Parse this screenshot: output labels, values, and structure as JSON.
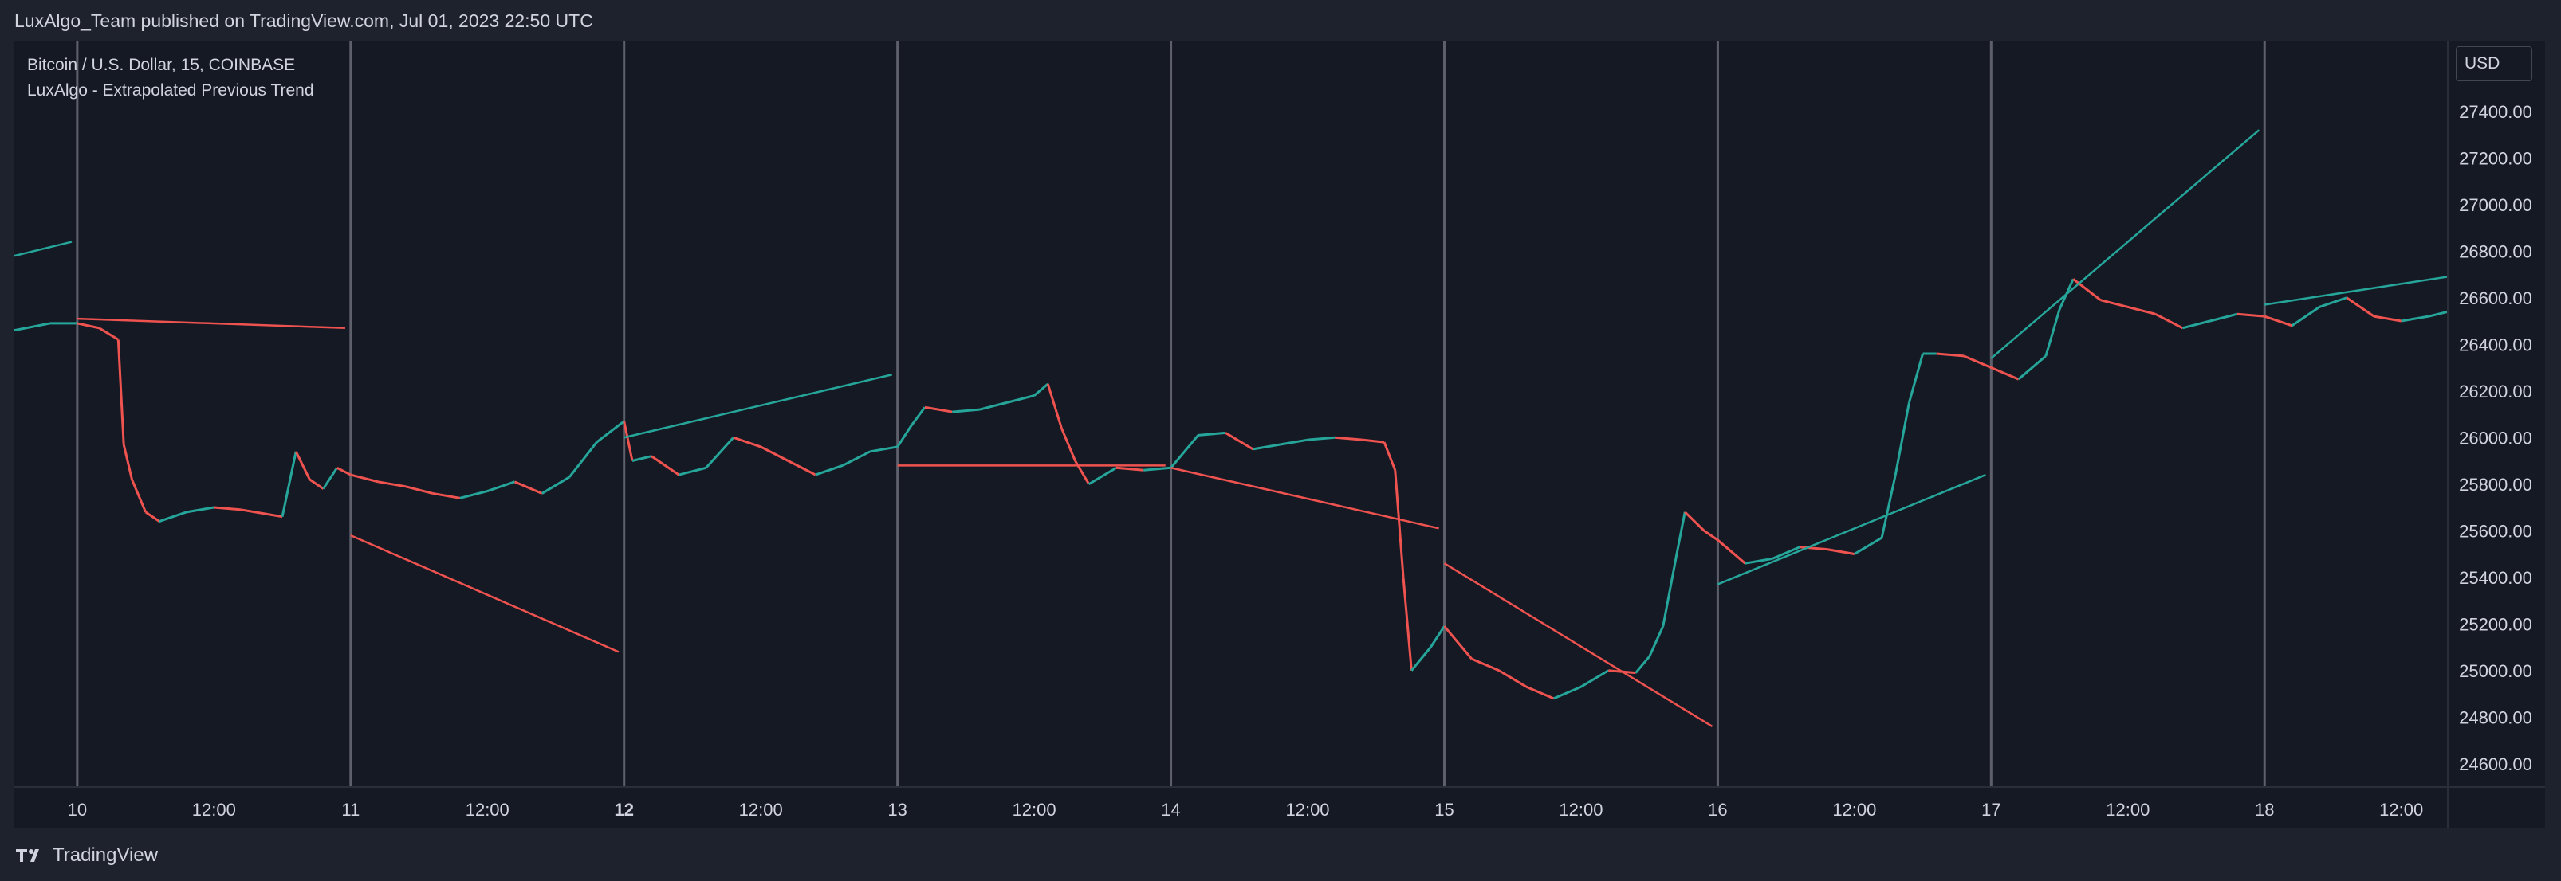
{
  "header": {
    "published_text": "LuxAlgo_Team published on TradingView.com, Jul 01, 2023 22:50 UTC"
  },
  "legend": {
    "symbol_line": "Bitcoin / U.S. Dollar, 15, COINBASE",
    "indicator_line": "LuxAlgo - Extrapolated Previous Trend"
  },
  "price_axis": {
    "currency": "USD"
  },
  "footer": {
    "brand": "TradingView"
  },
  "colors": {
    "background": "#151924",
    "up": "#26a69a",
    "down": "#ef5350",
    "text": "#d1d4dc",
    "separator": "#5d606b"
  },
  "chart_data": {
    "type": "line",
    "title": "",
    "x_ticks": [
      {
        "label": "10",
        "pos": 0,
        "bold": false
      },
      {
        "label": "12:00",
        "pos": 0.5,
        "bold": false
      },
      {
        "label": "11",
        "pos": 1,
        "bold": false
      },
      {
        "label": "12:00",
        "pos": 1.5,
        "bold": false
      },
      {
        "label": "12",
        "pos": 2,
        "bold": true
      },
      {
        "label": "12:00",
        "pos": 2.5,
        "bold": false
      },
      {
        "label": "13",
        "pos": 3,
        "bold": false
      },
      {
        "label": "12:00",
        "pos": 3.5,
        "bold": false
      },
      {
        "label": "14",
        "pos": 4,
        "bold": false
      },
      {
        "label": "12:00",
        "pos": 4.5,
        "bold": false
      },
      {
        "label": "15",
        "pos": 5,
        "bold": false
      },
      {
        "label": "12:00",
        "pos": 5.5,
        "bold": false
      },
      {
        "label": "16",
        "pos": 6,
        "bold": false
      },
      {
        "label": "12:00",
        "pos": 6.5,
        "bold": false
      },
      {
        "label": "17",
        "pos": 7,
        "bold": false
      },
      {
        "label": "12:00",
        "pos": 7.5,
        "bold": false
      },
      {
        "label": "18",
        "pos": 8,
        "bold": false
      },
      {
        "label": "12:00",
        "pos": 8.5,
        "bold": false
      }
    ],
    "y_ticks": [
      "24600.00",
      "24800.00",
      "25000.00",
      "25200.00",
      "25400.00",
      "25600.00",
      "25800.00",
      "26000.00",
      "26200.00",
      "26400.00",
      "26600.00",
      "26800.00",
      "27000.00",
      "27200.00",
      "27400.00"
    ],
    "xlim": [
      -0.23,
      8.67
    ],
    "ylim": [
      24500,
      27700
    ],
    "session_separators": [
      0,
      1,
      2,
      3,
      4,
      5,
      6,
      7,
      8
    ],
    "price_series": [
      [
        -0.23,
        26460
      ],
      [
        -0.1,
        26490
      ],
      [
        0,
        26490
      ],
      [
        0.08,
        26470
      ],
      [
        0.15,
        26420
      ],
      [
        0.17,
        25970
      ],
      [
        0.2,
        25820
      ],
      [
        0.25,
        25680
      ],
      [
        0.3,
        25640
      ],
      [
        0.4,
        25680
      ],
      [
        0.5,
        25700
      ],
      [
        0.6,
        25690
      ],
      [
        0.7,
        25670
      ],
      [
        0.75,
        25660
      ],
      [
        0.8,
        25940
      ],
      [
        0.85,
        25820
      ],
      [
        0.9,
        25780
      ],
      [
        0.95,
        25870
      ],
      [
        1,
        25840
      ],
      [
        1.1,
        25810
      ],
      [
        1.2,
        25790
      ],
      [
        1.3,
        25760
      ],
      [
        1.4,
        25740
      ],
      [
        1.5,
        25770
      ],
      [
        1.6,
        25810
      ],
      [
        1.7,
        25760
      ],
      [
        1.8,
        25830
      ],
      [
        1.9,
        25980
      ],
      [
        2,
        26070
      ],
      [
        2.03,
        25900
      ],
      [
        2.1,
        25920
      ],
      [
        2.2,
        25840
      ],
      [
        2.3,
        25870
      ],
      [
        2.4,
        26000
      ],
      [
        2.5,
        25960
      ],
      [
        2.6,
        25900
      ],
      [
        2.7,
        25840
      ],
      [
        2.8,
        25880
      ],
      [
        2.9,
        25940
      ],
      [
        3,
        25960
      ],
      [
        3.05,
        26050
      ],
      [
        3.1,
        26130
      ],
      [
        3.2,
        26110
      ],
      [
        3.3,
        26120
      ],
      [
        3.4,
        26150
      ],
      [
        3.5,
        26180
      ],
      [
        3.55,
        26230
      ],
      [
        3.6,
        26040
      ],
      [
        3.65,
        25900
      ],
      [
        3.7,
        25800
      ],
      [
        3.8,
        25870
      ],
      [
        3.9,
        25860
      ],
      [
        4,
        25870
      ],
      [
        4.1,
        26010
      ],
      [
        4.2,
        26020
      ],
      [
        4.3,
        25950
      ],
      [
        4.4,
        25970
      ],
      [
        4.5,
        25990
      ],
      [
        4.6,
        26000
      ],
      [
        4.7,
        25990
      ],
      [
        4.78,
        25980
      ],
      [
        4.82,
        25860
      ],
      [
        4.85,
        25400
      ],
      [
        4.88,
        25000
      ],
      [
        4.95,
        25100
      ],
      [
        5,
        25190
      ],
      [
        5.1,
        25050
      ],
      [
        5.2,
        25000
      ],
      [
        5.3,
        24930
      ],
      [
        5.4,
        24880
      ],
      [
        5.5,
        24930
      ],
      [
        5.6,
        25000
      ],
      [
        5.7,
        24990
      ],
      [
        5.75,
        25060
      ],
      [
        5.8,
        25190
      ],
      [
        5.85,
        25500
      ],
      [
        5.88,
        25680
      ],
      [
        5.95,
        25600
      ],
      [
        6,
        25560
      ],
      [
        6.1,
        25460
      ],
      [
        6.2,
        25480
      ],
      [
        6.3,
        25530
      ],
      [
        6.4,
        25520
      ],
      [
        6.5,
        25500
      ],
      [
        6.6,
        25570
      ],
      [
        6.65,
        25840
      ],
      [
        6.7,
        26150
      ],
      [
        6.75,
        26360
      ],
      [
        6.8,
        26360
      ],
      [
        6.9,
        26350
      ],
      [
        7,
        26300
      ],
      [
        7.1,
        26250
      ],
      [
        7.2,
        26350
      ],
      [
        7.25,
        26550
      ],
      [
        7.3,
        26680
      ],
      [
        7.4,
        26590
      ],
      [
        7.5,
        26560
      ],
      [
        7.6,
        26530
      ],
      [
        7.7,
        26470
      ],
      [
        7.8,
        26500
      ],
      [
        7.9,
        26530
      ],
      [
        8,
        26520
      ],
      [
        8.1,
        26480
      ],
      [
        8.2,
        26560
      ],
      [
        8.3,
        26600
      ],
      [
        8.4,
        26520
      ],
      [
        8.5,
        26500
      ],
      [
        8.6,
        26520
      ],
      [
        8.67,
        26540
      ]
    ],
    "trend_lines": [
      {
        "dir": "up",
        "x0": -0.23,
        "y0": 26780,
        "x1": -0.02,
        "y1": 26840
      },
      {
        "dir": "down",
        "x0": 0,
        "y0": 26510,
        "x1": 0.98,
        "y1": 26470
      },
      {
        "dir": "down",
        "x0": 1,
        "y0": 25580,
        "x1": 1.98,
        "y1": 25080
      },
      {
        "dir": "up",
        "x0": 2,
        "y0": 26000,
        "x1": 2.98,
        "y1": 26270
      },
      {
        "dir": "down",
        "x0": 3,
        "y0": 25880,
        "x1": 3.98,
        "y1": 25880
      },
      {
        "dir": "down",
        "x0": 4,
        "y0": 25870,
        "x1": 4.98,
        "y1": 25610
      },
      {
        "dir": "down",
        "x0": 5,
        "y0": 25460,
        "x1": 5.98,
        "y1": 24760
      },
      {
        "dir": "up",
        "x0": 6,
        "y0": 25370,
        "x1": 6.98,
        "y1": 25840
      },
      {
        "dir": "up",
        "x0": 7,
        "y0": 26340,
        "x1": 7.98,
        "y1": 27320
      },
      {
        "dir": "up",
        "x0": 8,
        "y0": 26570,
        "x1": 8.67,
        "y1": 26690
      }
    ]
  }
}
